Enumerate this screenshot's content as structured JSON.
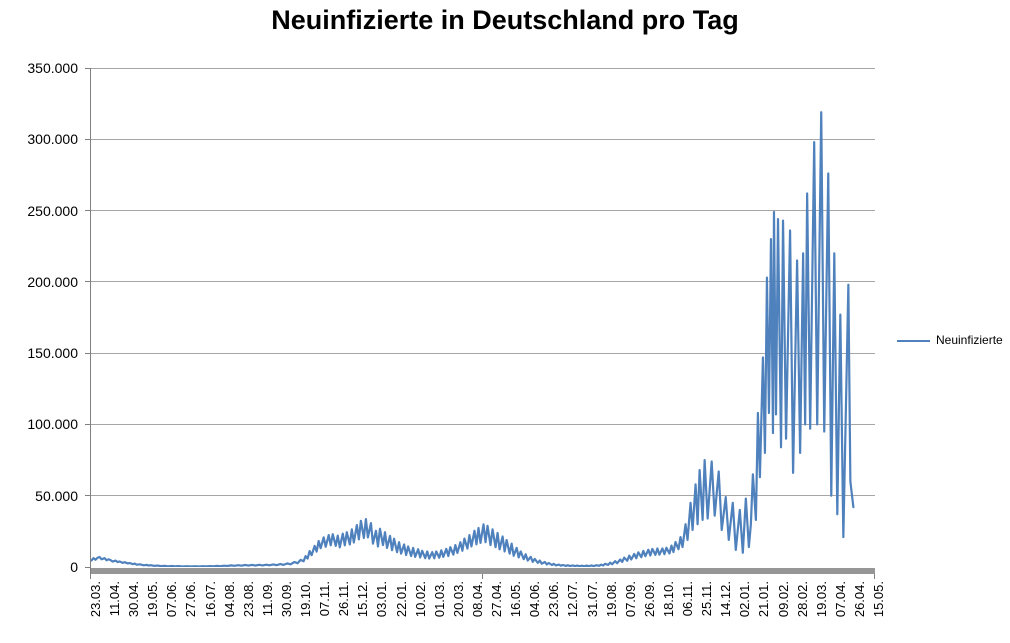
{
  "chart_data": {
    "type": "line",
    "title": "Neuinfizierte in Deutschland pro Tag",
    "legend": {
      "label": "Neuinfizierte",
      "position": "right"
    },
    "grid": "horizontal",
    "colors": {
      "line": "#4F81BD",
      "gridline": "#A6A6A6",
      "axis": "#808080",
      "axis_band": "#969696",
      "text": "#000000",
      "background": "#FFFFFF"
    },
    "y_axis": {
      "min": 0,
      "max": 350000,
      "tick_interval": 50000,
      "tick_labels": [
        "350.000",
        "300.000",
        "250.000",
        "200.000",
        "150.000",
        "100.000",
        "50.000",
        "0"
      ]
    },
    "x_axis": {
      "total_points": 780,
      "labels_every_n_points": 19,
      "rotation_degrees": -90,
      "tick_labels": [
        "23.03.",
        "11.04.",
        "30.04.",
        "19.05.",
        "07.06.",
        "27.06.",
        "16.07.",
        "04.08.",
        "23.08.",
        "11.09.",
        "30.09.",
        "19.10.",
        "07.11.",
        "26.11.",
        "15.12.",
        "03.01.",
        "22.01.",
        "10.02.",
        "01.03.",
        "20.03.",
        "08.04.",
        "27.04.",
        "16.05.",
        "04.06.",
        "23.06.",
        "12.07.",
        "31.07.",
        "19.08.",
        "07.09.",
        "26.09.",
        "18.10.",
        "06.11.",
        "25.11.",
        "14.12.",
        "02.01.",
        "21.01.",
        "09.02.",
        "28.02.",
        "19.03.",
        "07.04.",
        "26.04.",
        "15.05."
      ]
    },
    "series": [
      {
        "name": "Neuinfizierte",
        "color": "#4F81BD",
        "points": [
          [
            0,
            4600
          ],
          [
            2,
            6200
          ],
          [
            4,
            5100
          ],
          [
            6,
            6500
          ],
          [
            8,
            7000
          ],
          [
            10,
            5400
          ],
          [
            13,
            6200
          ],
          [
            15,
            4700
          ],
          [
            17,
            5400
          ],
          [
            19,
            4800
          ],
          [
            21,
            3800
          ],
          [
            24,
            4500
          ],
          [
            26,
            3400
          ],
          [
            28,
            3900
          ],
          [
            31,
            2900
          ],
          [
            33,
            3400
          ],
          [
            36,
            2500
          ],
          [
            38,
            2800
          ],
          [
            41,
            2000
          ],
          [
            43,
            2400
          ],
          [
            45,
            1600
          ],
          [
            48,
            1900
          ],
          [
            52,
            1200
          ],
          [
            55,
            1500
          ],
          [
            57,
            1000
          ],
          [
            59,
            1300
          ],
          [
            62,
            800
          ],
          [
            66,
            1000
          ],
          [
            69,
            600
          ],
          [
            73,
            850
          ],
          [
            76,
            500
          ],
          [
            80,
            700
          ],
          [
            83,
            420
          ],
          [
            87,
            600
          ],
          [
            90,
            380
          ],
          [
            95,
            580
          ],
          [
            99,
            360
          ],
          [
            103,
            550
          ],
          [
            107,
            340
          ],
          [
            111,
            520
          ],
          [
            114,
            420
          ],
          [
            118,
            640
          ],
          [
            121,
            460
          ],
          [
            125,
            780
          ],
          [
            128,
            560
          ],
          [
            132,
            920
          ],
          [
            135,
            700
          ],
          [
            139,
            1150
          ],
          [
            142,
            830
          ],
          [
            146,
            1300
          ],
          [
            149,
            930
          ],
          [
            153,
            1420
          ],
          [
            156,
            990
          ],
          [
            160,
            1480
          ],
          [
            163,
            1040
          ],
          [
            167,
            1540
          ],
          [
            170,
            1080
          ],
          [
            174,
            1620
          ],
          [
            177,
            1160
          ],
          [
            181,
            1780
          ],
          [
            184,
            1280
          ],
          [
            188,
            2080
          ],
          [
            191,
            1480
          ],
          [
            195,
            2550
          ],
          [
            198,
            1850
          ],
          [
            202,
            3500
          ],
          [
            205,
            2600
          ],
          [
            208,
            5000
          ],
          [
            211,
            4000
          ],
          [
            213,
            7600
          ],
          [
            215,
            5900
          ],
          [
            217,
            11200
          ],
          [
            219,
            8300
          ],
          [
            222,
            14800
          ],
          [
            224,
            10800
          ],
          [
            226,
            18200
          ],
          [
            228,
            13200
          ],
          [
            231,
            20800
          ],
          [
            233,
            14200
          ],
          [
            236,
            22400
          ],
          [
            238,
            15200
          ],
          [
            240,
            23000
          ],
          [
            243,
            14800
          ],
          [
            245,
            22000
          ],
          [
            247,
            13800
          ],
          [
            250,
            23400
          ],
          [
            252,
            15200
          ],
          [
            254,
            24400
          ],
          [
            257,
            15800
          ],
          [
            259,
            26400
          ],
          [
            261,
            17200
          ],
          [
            264,
            29400
          ],
          [
            266,
            19400
          ],
          [
            268,
            32400
          ],
          [
            271,
            20400
          ],
          [
            273,
            33600
          ],
          [
            275,
            20800
          ],
          [
            278,
            30800
          ],
          [
            280,
            16400
          ],
          [
            283,
            25400
          ],
          [
            285,
            14400
          ],
          [
            287,
            26800
          ],
          [
            290,
            15400
          ],
          [
            292,
            24400
          ],
          [
            294,
            13400
          ],
          [
            297,
            21800
          ],
          [
            299,
            11800
          ],
          [
            301,
            19800
          ],
          [
            304,
            10400
          ],
          [
            306,
            17400
          ],
          [
            308,
            9400
          ],
          [
            311,
            15800
          ],
          [
            313,
            8400
          ],
          [
            315,
            14400
          ],
          [
            318,
            7700
          ],
          [
            320,
            13400
          ],
          [
            322,
            7100
          ],
          [
            325,
            12400
          ],
          [
            327,
            6700
          ],
          [
            329,
            11400
          ],
          [
            332,
            6200
          ],
          [
            334,
            10900
          ],
          [
            336,
            5900
          ],
          [
            339,
            10400
          ],
          [
            341,
            6100
          ],
          [
            343,
            10900
          ],
          [
            346,
            6500
          ],
          [
            348,
            11700
          ],
          [
            350,
            7100
          ],
          [
            353,
            12700
          ],
          [
            355,
            7700
          ],
          [
            357,
            13900
          ],
          [
            360,
            8700
          ],
          [
            362,
            15400
          ],
          [
            364,
            9900
          ],
          [
            367,
            17400
          ],
          [
            369,
            11400
          ],
          [
            371,
            19900
          ],
          [
            374,
            12900
          ],
          [
            376,
            22400
          ],
          [
            378,
            14400
          ],
          [
            381,
            25400
          ],
          [
            383,
            15900
          ],
          [
            385,
            27400
          ],
          [
            387,
            16900
          ],
          [
            390,
            29900
          ],
          [
            392,
            17400
          ],
          [
            394,
            28900
          ],
          [
            397,
            15400
          ],
          [
            399,
            26400
          ],
          [
            402,
            13900
          ],
          [
            404,
            23900
          ],
          [
            406,
            12400
          ],
          [
            409,
            21400
          ],
          [
            411,
            10900
          ],
          [
            413,
            18900
          ],
          [
            416,
            9400
          ],
          [
            418,
            16400
          ],
          [
            420,
            7900
          ],
          [
            423,
            13400
          ],
          [
            425,
            6700
          ],
          [
            427,
            10900
          ],
          [
            430,
            5500
          ],
          [
            432,
            8900
          ],
          [
            434,
            4500
          ],
          [
            437,
            7100
          ],
          [
            439,
            3600
          ],
          [
            441,
            5700
          ],
          [
            444,
            2900
          ],
          [
            446,
            4500
          ],
          [
            448,
            2300
          ],
          [
            451,
            3500
          ],
          [
            453,
            1800
          ],
          [
            455,
            2800
          ],
          [
            458,
            1400
          ],
          [
            460,
            2200
          ],
          [
            462,
            1100
          ],
          [
            465,
            1700
          ],
          [
            467,
            900
          ],
          [
            469,
            1400
          ],
          [
            472,
            750
          ],
          [
            474,
            1250
          ],
          [
            476,
            650
          ],
          [
            479,
            1100
          ],
          [
            481,
            600
          ],
          [
            483,
            1000
          ],
          [
            486,
            560
          ],
          [
            488,
            960
          ],
          [
            490,
            540
          ],
          [
            493,
            960
          ],
          [
            495,
            560
          ],
          [
            497,
            1060
          ],
          [
            500,
            640
          ],
          [
            502,
            1260
          ],
          [
            505,
            800
          ],
          [
            507,
            1660
          ],
          [
            509,
            1060
          ],
          [
            511,
            2260
          ],
          [
            514,
            1460
          ],
          [
            516,
            3060
          ],
          [
            518,
            1960
          ],
          [
            521,
            4060
          ],
          [
            523,
            2660
          ],
          [
            526,
            5260
          ],
          [
            528,
            3560
          ],
          [
            530,
            6560
          ],
          [
            533,
            4360
          ],
          [
            535,
            7960
          ],
          [
            537,
            5260
          ],
          [
            540,
            9160
          ],
          [
            542,
            6160
          ],
          [
            544,
            10300
          ],
          [
            547,
            6900
          ],
          [
            549,
            11300
          ],
          [
            551,
            7600
          ],
          [
            554,
            12100
          ],
          [
            556,
            8100
          ],
          [
            558,
            12700
          ],
          [
            561,
            8500
          ],
          [
            563,
            13000
          ],
          [
            565,
            8700
          ],
          [
            568,
            13000
          ],
          [
            570,
            9000
          ],
          [
            572,
            13500
          ],
          [
            575,
            9500
          ],
          [
            577,
            15000
          ],
          [
            579,
            10500
          ],
          [
            581,
            17500
          ],
          [
            584,
            12500
          ],
          [
            586,
            21000
          ],
          [
            588,
            14000
          ],
          [
            591,
            30000
          ],
          [
            593,
            19000
          ],
          [
            596,
            45000
          ],
          [
            598,
            26000
          ],
          [
            601,
            58000
          ],
          [
            603,
            30000
          ],
          [
            605,
            68000
          ],
          [
            608,
            33000
          ],
          [
            610,
            75000
          ],
          [
            613,
            34000
          ],
          [
            617,
            74000
          ],
          [
            620,
            36000
          ],
          [
            624,
            67000
          ],
          [
            627,
            26000
          ],
          [
            631,
            49000
          ],
          [
            634,
            19000
          ],
          [
            638,
            45000
          ],
          [
            641,
            12000
          ],
          [
            645,
            40000
          ],
          [
            648,
            10000
          ],
          [
            651,
            48000
          ],
          [
            654,
            14000
          ],
          [
            656,
            30000
          ],
          [
            658,
            65000
          ],
          [
            661,
            33000
          ],
          [
            663,
            108000
          ],
          [
            665,
            63000
          ],
          [
            668,
            147000
          ],
          [
            670,
            80000
          ],
          [
            672,
            203000
          ],
          [
            674,
            108000
          ],
          [
            676,
            230000
          ],
          [
            678,
            94000
          ],
          [
            679,
            249000
          ],
          [
            681,
            107000
          ],
          [
            683,
            244000
          ],
          [
            686,
            84000
          ],
          [
            688,
            243000
          ],
          [
            691,
            90000
          ],
          [
            695,
            236000
          ],
          [
            698,
            66000
          ],
          [
            702,
            215000
          ],
          [
            705,
            80000
          ],
          [
            708,
            220000
          ],
          [
            710,
            100000
          ],
          [
            712,
            262000
          ],
          [
            715,
            97000
          ],
          [
            719,
            298000
          ],
          [
            722,
            100000
          ],
          [
            726,
            319000
          ],
          [
            729,
            95000
          ],
          [
            733,
            276000
          ],
          [
            736,
            50000
          ],
          [
            739,
            220000
          ],
          [
            742,
            37000
          ],
          [
            745,
            177000
          ],
          [
            748,
            21000
          ],
          [
            753,
            198000
          ],
          [
            755,
            60000
          ],
          [
            758,
            42000
          ]
        ]
      }
    ]
  }
}
